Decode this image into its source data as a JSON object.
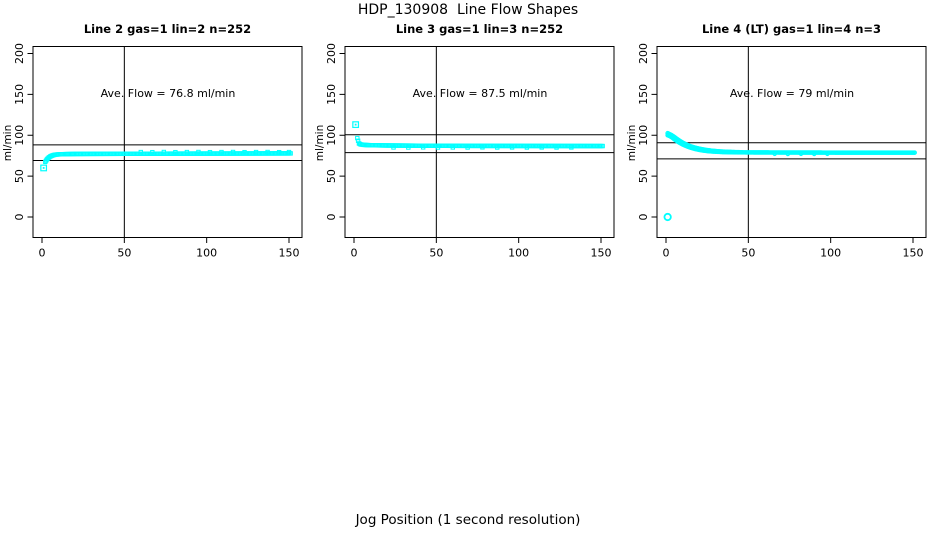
{
  "page": {
    "title": "HDP_130908  Line Flow Shapes",
    "xlabel": "Jog Position (1 second resolution)",
    "background": "#ffffff",
    "accent_color": "#00ffff"
  },
  "chart_data": [
    {
      "type": "scatter",
      "title": "Line 2 gas=1 lin=2 n=252",
      "annotation": "Ave. Flow =  76.8  ml/min",
      "ave_flow": 76.8,
      "ylabel": "ml/min",
      "xlim": [
        0,
        150
      ],
      "ylim": [
        0,
        200
      ],
      "xticks": [
        0,
        50,
        100,
        150
      ],
      "yticks": [
        0,
        50,
        100,
        150,
        200
      ],
      "vline_x": 50,
      "hlines": [
        88.3,
        69.1
      ],
      "grid": false,
      "legend": "none",
      "series": [
        {
          "name": "flow-trace",
          "marker": "square",
          "color": "#00ffff",
          "connect": true,
          "points": [
            [
              2,
              67.5
            ],
            [
              3,
              70.5
            ],
            [
              4,
              72.5
            ],
            [
              5,
              74
            ],
            [
              6,
              75
            ],
            [
              7,
              75.7
            ],
            [
              8,
              76.2
            ],
            [
              10,
              76.6
            ],
            [
              14,
              76.9
            ],
            [
              20,
              77.1
            ],
            [
              30,
              77.2
            ],
            [
              50,
              77.3
            ],
            [
              80,
              77.5
            ],
            [
              110,
              77.6
            ],
            [
              151,
              77.8
            ]
          ]
        },
        {
          "name": "jitter-above",
          "marker": "square",
          "color": "#00ffff",
          "connect": false,
          "points": [
            [
              60,
              79.4
            ],
            [
              67,
              79.3
            ],
            [
              74,
              79.5
            ],
            [
              81,
              79.3
            ],
            [
              88,
              79.4
            ],
            [
              95,
              79.5
            ],
            [
              102,
              79.3
            ],
            [
              109,
              79.4
            ],
            [
              116,
              79.5
            ],
            [
              123,
              79.3
            ],
            [
              130,
              79.4
            ],
            [
              137,
              79.5
            ],
            [
              144,
              79.3
            ],
            [
              150,
              79.4
            ]
          ]
        },
        {
          "name": "start-outlier",
          "marker": "square-dot",
          "color": "#00ffff",
          "connect": false,
          "points": [
            [
              1,
              60
            ]
          ]
        }
      ]
    },
    {
      "type": "scatter",
      "title": "Line 3 gas=1 lin=3 n=252",
      "annotation": "Ave. Flow =  87.5  ml/min",
      "ave_flow": 87.5,
      "ylabel": "ml/min",
      "xlim": [
        0,
        150
      ],
      "ylim": [
        0,
        200
      ],
      "xticks": [
        0,
        50,
        100,
        150
      ],
      "yticks": [
        0,
        50,
        100,
        150,
        200
      ],
      "vline_x": 50,
      "hlines": [
        100.6,
        78.8
      ],
      "grid": false,
      "legend": "none",
      "series": [
        {
          "name": "flow-trace",
          "marker": "square",
          "color": "#00ffff",
          "connect": true,
          "points": [
            [
              2,
              96.5
            ],
            [
              3,
              90
            ],
            [
              4,
              88.8
            ],
            [
              6,
              88.2
            ],
            [
              10,
              87.8
            ],
            [
              20,
              87.5
            ],
            [
              40,
              87.2
            ],
            [
              70,
              87
            ],
            [
              110,
              86.9
            ],
            [
              151,
              86.8
            ]
          ]
        },
        {
          "name": "jitter-below",
          "marker": "square",
          "color": "#00ffff",
          "connect": false,
          "points": [
            [
              24,
              85.1
            ],
            [
              33,
              85.0
            ],
            [
              42,
              85.2
            ],
            [
              51,
              85.0
            ],
            [
              60,
              85.1
            ],
            [
              69,
              85.0
            ],
            [
              78,
              85.2
            ],
            [
              87,
              85.0
            ],
            [
              96,
              85.1
            ],
            [
              105,
              85.0
            ],
            [
              114,
              85.1
            ],
            [
              123,
              85.0
            ],
            [
              132,
              85.1
            ]
          ]
        },
        {
          "name": "start-outlier",
          "marker": "square-dot",
          "color": "#00ffff",
          "connect": false,
          "points": [
            [
              1,
              113
            ]
          ]
        }
      ]
    },
    {
      "type": "scatter",
      "title": "Line 4 (LT) gas=1 lin=4 n=3",
      "annotation": "Ave. Flow =  79  ml/min",
      "ave_flow": 79,
      "ylabel": "ml/min",
      "xlim": [
        0,
        150
      ],
      "ylim": [
        0,
        200
      ],
      "xticks": [
        0,
        50,
        100,
        150
      ],
      "yticks": [
        0,
        50,
        100,
        150,
        200
      ],
      "vline_x": 50,
      "hlines": [
        90.9,
        71.1
      ],
      "grid": false,
      "legend": "none",
      "series": [
        {
          "name": "flow-trace-run1",
          "marker": "circle",
          "color": "#00ffff",
          "connect": true,
          "points": [
            [
              1,
              100
            ],
            [
              2,
              99.3
            ],
            [
              3,
              98.2
            ],
            [
              4,
              96.8
            ],
            [
              5,
              95.3
            ],
            [
              6,
              93.8
            ],
            [
              7,
              92.4
            ],
            [
              8,
              91.1
            ],
            [
              9,
              90
            ],
            [
              10,
              88.9
            ],
            [
              12,
              87
            ],
            [
              14,
              85.5
            ],
            [
              16,
              84.2
            ],
            [
              18,
              83.1
            ],
            [
              20,
              82.2
            ],
            [
              23,
              81.2
            ],
            [
              26,
              80.5
            ],
            [
              30,
              79.9
            ],
            [
              35,
              79.4
            ],
            [
              40,
              79.2
            ],
            [
              50,
              79
            ],
            [
              65,
              78.9
            ],
            [
              85,
              78.8
            ],
            [
              110,
              78.7
            ],
            [
              151,
              78.7
            ]
          ]
        },
        {
          "name": "flow-trace-run2",
          "marker": "circle",
          "color": "#00ffff",
          "connect": true,
          "points": [
            [
              1,
              102.5
            ],
            [
              3,
              100.6
            ],
            [
              5,
              98
            ],
            [
              7,
              95
            ],
            [
              9,
              92.3
            ],
            [
              11,
              90
            ],
            [
              13,
              88
            ],
            [
              15,
              86.4
            ],
            [
              18,
              84.6
            ],
            [
              21,
              83.2
            ],
            [
              24,
              82.1
            ],
            [
              28,
              81
            ],
            [
              32,
              80.3
            ],
            [
              36,
              79.8
            ],
            [
              40,
              79.5
            ],
            [
              45,
              79.2
            ]
          ]
        },
        {
          "name": "jitter-below",
          "marker": "circle",
          "color": "#00ffff",
          "connect": false,
          "points": [
            [
              66,
              77.3
            ],
            [
              74,
              77.2
            ],
            [
              82,
              77.3
            ],
            [
              90,
              77.2
            ],
            [
              98,
              77.3
            ]
          ]
        },
        {
          "name": "zero-outlier",
          "marker": "circle-open",
          "color": "#00ffff",
          "connect": false,
          "points": [
            [
              1,
              0
            ]
          ]
        }
      ]
    }
  ]
}
